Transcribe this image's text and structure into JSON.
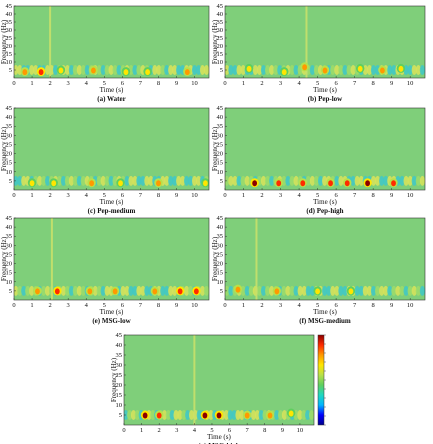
{
  "figure": {
    "xlabel": "Time (s)",
    "ylabel": "Frequency (Hz)",
    "x_ticks": [
      "0",
      "1",
      "2",
      "3",
      "4",
      "5",
      "6",
      "7",
      "8",
      "9",
      "10"
    ],
    "y_ticks": [
      "5",
      "10",
      "15",
      "20",
      "25",
      "30",
      "35",
      "40",
      "45"
    ]
  },
  "colormap": [
    "#00008b",
    "#0000ff",
    "#00b5ff",
    "#1fd8c0",
    "#5fcf5f",
    "#b8e04a",
    "#ffe600",
    "#ff9900",
    "#ff2a00",
    "#8b0000"
  ],
  "chart_data": [
    {
      "type": "heatmap",
      "panel": "a",
      "caption": "(a) Water",
      "xlabel": "Time (s)",
      "ylabel": "Frequency (Hz)",
      "xlim": [
        0,
        10.8
      ],
      "ylim": [
        0,
        45
      ],
      "hotspots": [
        {
          "t": 0.6,
          "f": 4,
          "level": 0.75
        },
        {
          "t": 1.5,
          "f": 4,
          "level": 0.9
        },
        {
          "t": 2.6,
          "f": 5,
          "level": 0.7
        },
        {
          "t": 4.4,
          "f": 5,
          "level": 0.75
        },
        {
          "t": 6.2,
          "f": 4,
          "level": 0.7
        },
        {
          "t": 7.4,
          "f": 4,
          "level": 0.7
        },
        {
          "t": 9.6,
          "f": 4,
          "level": 0.75
        }
      ],
      "vertical_lines": [
        2.0
      ]
    },
    {
      "type": "heatmap",
      "panel": "b",
      "caption": "(b) Pep-low",
      "xlabel": "Time (s)",
      "ylabel": "Frequency (Hz)",
      "xlim": [
        0,
        10.8
      ],
      "ylim": [
        0,
        45
      ],
      "hotspots": [
        {
          "t": 1.3,
          "f": 6,
          "level": 0.7
        },
        {
          "t": 3.2,
          "f": 4,
          "level": 0.7
        },
        {
          "t": 4.3,
          "f": 7,
          "level": 0.75
        },
        {
          "t": 5.4,
          "f": 5,
          "level": 0.8
        },
        {
          "t": 7.3,
          "f": 6,
          "level": 0.7
        },
        {
          "t": 8.5,
          "f": 5,
          "level": 0.75
        },
        {
          "t": 9.5,
          "f": 6,
          "level": 0.7
        }
      ],
      "vertical_lines": [
        4.4
      ]
    },
    {
      "type": "heatmap",
      "panel": "c",
      "caption": "(c) Pep-medium",
      "xlabel": "Time (s)",
      "ylabel": "Frequency (Hz)",
      "xlim": [
        0,
        10.8
      ],
      "ylim": [
        0,
        45
      ],
      "hotspots": [
        {
          "t": 1.0,
          "f": 4,
          "level": 0.7
        },
        {
          "t": 2.2,
          "f": 4,
          "level": 0.7
        },
        {
          "t": 4.3,
          "f": 4,
          "level": 0.75
        },
        {
          "t": 5.9,
          "f": 4,
          "level": 0.7
        },
        {
          "t": 8.0,
          "f": 4,
          "level": 0.75
        },
        {
          "t": 10.6,
          "f": 4,
          "level": 0.7
        }
      ],
      "vertical_lines": []
    },
    {
      "type": "heatmap",
      "panel": "d",
      "caption": "(d) Pep-high",
      "xlabel": "Time (s)",
      "ylabel": "Frequency (Hz)",
      "xlim": [
        0,
        10.8
      ],
      "ylim": [
        0,
        45
      ],
      "hotspots": [
        {
          "t": 1.6,
          "f": 4,
          "level": 0.95
        },
        {
          "t": 2.9,
          "f": 4,
          "level": 0.85
        },
        {
          "t": 4.2,
          "f": 4,
          "level": 0.85
        },
        {
          "t": 5.7,
          "f": 4,
          "level": 0.85
        },
        {
          "t": 6.6,
          "f": 4,
          "level": 0.85
        },
        {
          "t": 7.7,
          "f": 4,
          "level": 0.95
        },
        {
          "t": 9.1,
          "f": 4,
          "level": 0.85
        }
      ],
      "vertical_lines": []
    },
    {
      "type": "heatmap",
      "panel": "e",
      "caption": "(e) MSG-low",
      "xlabel": "Time (s)",
      "ylabel": "Frequency (Hz)",
      "xlim": [
        0,
        10.8
      ],
      "ylim": [
        0,
        45
      ],
      "hotspots": [
        {
          "t": 1.3,
          "f": 5,
          "level": 0.8
        },
        {
          "t": 2.4,
          "f": 5,
          "level": 0.9
        },
        {
          "t": 4.2,
          "f": 5,
          "level": 0.8
        },
        {
          "t": 5.6,
          "f": 5,
          "level": 0.8
        },
        {
          "t": 7.8,
          "f": 5,
          "level": 0.8
        },
        {
          "t": 9.2,
          "f": 5,
          "level": 0.9
        },
        {
          "t": 10.1,
          "f": 5,
          "level": 0.9
        }
      ],
      "vertical_lines": [
        2.1
      ]
    },
    {
      "type": "heatmap",
      "panel": "f",
      "caption": "(f) MSG-medium",
      "xlabel": "Time (s)",
      "ylabel": "Frequency (Hz)",
      "xlim": [
        0,
        10.8
      ],
      "ylim": [
        0,
        45
      ],
      "hotspots": [
        {
          "t": 0.7,
          "f": 6,
          "level": 0.75
        },
        {
          "t": 2.8,
          "f": 5,
          "level": 0.75
        },
        {
          "t": 5.0,
          "f": 5,
          "level": 0.7
        },
        {
          "t": 6.8,
          "f": 5,
          "level": 0.7
        }
      ],
      "vertical_lines": [
        1.7
      ]
    },
    {
      "type": "heatmap",
      "panel": "g",
      "caption": "(g) MSG-high",
      "xlabel": "Time (s)",
      "ylabel": "Frequency (Hz)",
      "xlim": [
        0,
        10.8
      ],
      "ylim": [
        0,
        45
      ],
      "hotspots": [
        {
          "t": 1.2,
          "f": 5,
          "level": 0.95
        },
        {
          "t": 2.0,
          "f": 5,
          "level": 0.85
        },
        {
          "t": 4.6,
          "f": 5,
          "level": 0.95
        },
        {
          "t": 5.4,
          "f": 5,
          "level": 0.95
        },
        {
          "t": 7.0,
          "f": 5,
          "level": 0.75
        },
        {
          "t": 8.3,
          "f": 5,
          "level": 0.75
        },
        {
          "t": 9.5,
          "f": 6,
          "level": 0.7
        }
      ],
      "vertical_lines": [
        4.0
      ]
    }
  ]
}
